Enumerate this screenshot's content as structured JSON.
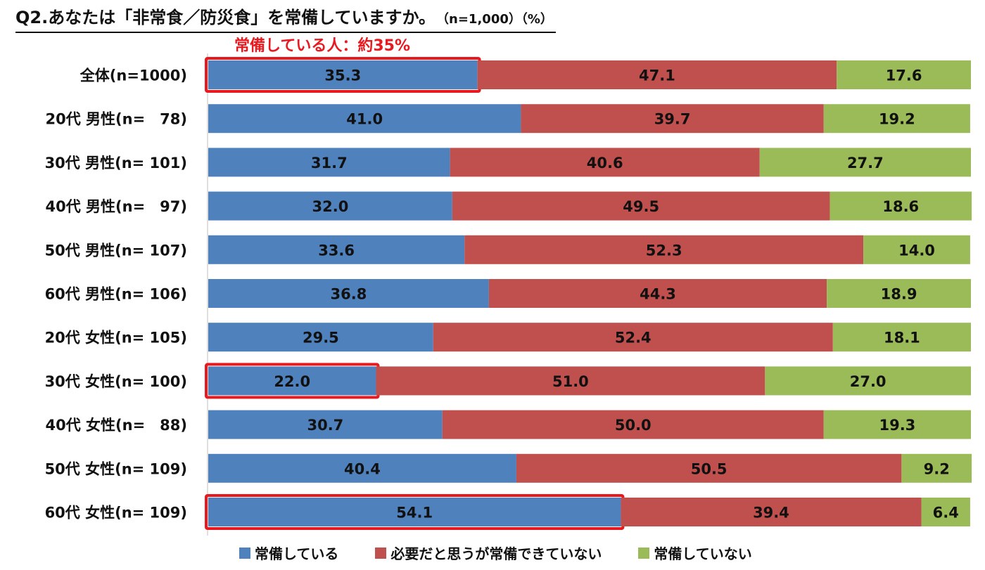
{
  "title": {
    "main": "Q2.あなたは「非常食／防災食」を常備していますか。",
    "sub": "（n=1,000）（%）"
  },
  "callout": "常備している人：約35%",
  "colors": {
    "series_1": "#4f81bd",
    "series_2": "#c0504d",
    "series_3": "#9bbb59",
    "highlight": "#e8191f"
  },
  "chart_data": {
    "type": "bar",
    "orientation": "horizontal",
    "stacked": true,
    "percent": true,
    "xlim": [
      0,
      100
    ],
    "categories": [
      "全体(n=1000)",
      "20代 男性(n=　78)",
      "30代 男性(n= 101)",
      "40代 男性(n=　97)",
      "50代 男性(n=  107)",
      "60代 男性(n=  106)",
      "20代 女性(n= 105)",
      "30代 女性(n= 100)",
      "40代 女性(n=　88)",
      "50代 女性(n= 109)",
      "60代 女性(n= 109)"
    ],
    "series": [
      {
        "name": "常備している",
        "values": [
          35.3,
          41.0,
          31.7,
          32.0,
          33.6,
          36.8,
          29.5,
          22.0,
          30.7,
          40.4,
          54.1
        ]
      },
      {
        "name": "必要だと思うが常備できていない",
        "values": [
          47.1,
          39.7,
          40.6,
          49.5,
          52.3,
          44.3,
          52.4,
          51.0,
          50.0,
          50.5,
          39.4
        ]
      },
      {
        "name": "常備していない",
        "values": [
          17.6,
          19.2,
          27.7,
          18.6,
          14.0,
          18.9,
          18.1,
          27.0,
          19.3,
          9.2,
          6.4
        ]
      }
    ],
    "highlighted": [
      {
        "category": "全体(n=1000)",
        "series": "常備している"
      },
      {
        "category": "30代 女性(n= 100)",
        "series": "常備している"
      },
      {
        "category": "60代 女性(n= 109)",
        "series": "常備している"
      }
    ],
    "legend_position": "bottom",
    "grid": false
  }
}
